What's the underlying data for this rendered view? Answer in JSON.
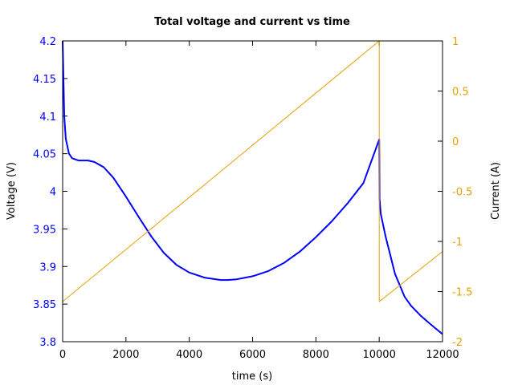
{
  "chart_data": {
    "type": "line",
    "title": "Total voltage and current vs time",
    "xlabel": "time (s)",
    "ylabel": "Voltage (V)",
    "y2label": "Current (A)",
    "xlim": [
      0,
      12000
    ],
    "ylim": [
      3.8,
      4.2
    ],
    "y2lim": [
      -2,
      1
    ],
    "xticks": [
      "0",
      "2000",
      "4000",
      "6000",
      "8000",
      "10000",
      "12000"
    ],
    "yticks": [
      "3.8",
      "3.85",
      "3.9",
      "3.95",
      "4",
      "4.05",
      "4.1",
      "4.15",
      "4.2"
    ],
    "y2ticks": [
      "-2",
      "-1.5",
      "-1",
      "-0.5",
      "0",
      "0.5",
      "1"
    ],
    "grid": false,
    "legend": "none",
    "series": [
      {
        "name": "Voltage",
        "axis": "left",
        "color": "#0000ff",
        "x": [
          0,
          50,
          100,
          200,
          300,
          500,
          800,
          1000,
          1300,
          1600,
          2000,
          2400,
          2800,
          3200,
          3600,
          4000,
          4500,
          5000,
          5200,
          5500,
          6000,
          6500,
          7000,
          7500,
          8000,
          8500,
          9000,
          9500,
          10000,
          10010,
          10050,
          10200,
          10500,
          10800,
          11000,
          11300,
          11600,
          12000
        ],
        "values": [
          4.2,
          4.1,
          4.07,
          4.05,
          4.044,
          4.041,
          4.041,
          4.039,
          4.032,
          4.018,
          3.993,
          3.966,
          3.94,
          3.918,
          3.902,
          3.892,
          3.885,
          3.882,
          3.882,
          3.883,
          3.887,
          3.894,
          3.905,
          3.92,
          3.939,
          3.96,
          3.984,
          4.011,
          4.069,
          3.99,
          3.97,
          3.94,
          3.89,
          3.86,
          3.848,
          3.835,
          3.824,
          3.81
        ]
      },
      {
        "name": "Current",
        "axis": "right",
        "color": "#e5a000",
        "x": [
          0,
          10000,
          10001,
          12000
        ],
        "values": [
          -1.6,
          1.0,
          -1.6,
          -1.1
        ]
      }
    ]
  },
  "colors": {
    "voltage": "#0000ff",
    "current": "#e5a000",
    "axis": "#000000"
  }
}
